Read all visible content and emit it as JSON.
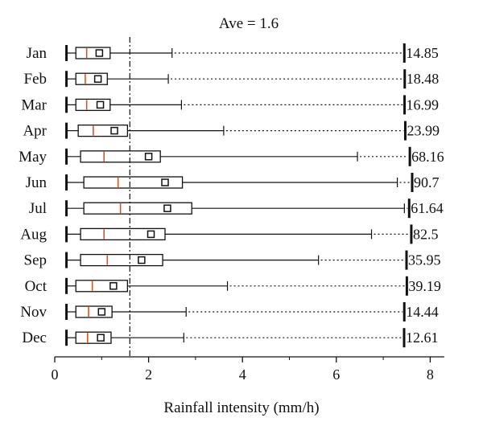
{
  "chart_data": {
    "type": "box",
    "title": "Ave = 1.6",
    "xlabel": "Rainfall intensity (mm/h)",
    "ylabel": "",
    "xlim": [
      0,
      8.3
    ],
    "xticks": [
      0,
      2,
      4,
      6,
      8
    ],
    "average_line": 1.6,
    "categories": [
      "Jan",
      "Feb",
      "Mar",
      "Apr",
      "May",
      "Jun",
      "Jul",
      "Aug",
      "Sep",
      "Oct",
      "Nov",
      "Dec"
    ],
    "boxes": [
      {
        "month": "Jan",
        "min": 0.25,
        "q1": 0.45,
        "median": 0.68,
        "mean": 0.95,
        "q3": 1.18,
        "whisker": 2.5,
        "max": 14.85,
        "max_label": "14.85"
      },
      {
        "month": "Feb",
        "min": 0.25,
        "q1": 0.45,
        "median": 0.65,
        "mean": 0.92,
        "q3": 1.12,
        "whisker": 2.42,
        "max": 18.48,
        "max_label": "18.48"
      },
      {
        "month": "Mar",
        "min": 0.25,
        "q1": 0.45,
        "median": 0.68,
        "mean": 0.97,
        "q3": 1.18,
        "whisker": 2.7,
        "max": 16.99,
        "max_label": "16.99"
      },
      {
        "month": "Apr",
        "min": 0.25,
        "q1": 0.5,
        "median": 0.82,
        "mean": 1.27,
        "q3": 1.55,
        "whisker": 3.6,
        "max": 23.99,
        "max_label": "23.99"
      },
      {
        "month": "May",
        "min": 0.25,
        "q1": 0.55,
        "median": 1.05,
        "mean": 2.0,
        "q3": 2.25,
        "whisker": 6.45,
        "max": 68.16,
        "max_label": "68.16"
      },
      {
        "month": "Jun",
        "min": 0.25,
        "q1": 0.62,
        "median": 1.35,
        "mean": 2.35,
        "q3": 2.72,
        "whisker": 7.3,
        "max": 90.7,
        "max_label": "90.7"
      },
      {
        "month": "Jul",
        "min": 0.25,
        "q1": 0.62,
        "median": 1.4,
        "mean": 2.4,
        "q3": 2.92,
        "whisker": 7.45,
        "max": 61.64,
        "max_label": "61.64"
      },
      {
        "month": "Aug",
        "min": 0.25,
        "q1": 0.55,
        "median": 1.05,
        "mean": 2.05,
        "q3": 2.35,
        "whisker": 6.75,
        "max": 82.5,
        "max_label": "82.5"
      },
      {
        "month": "Sep",
        "min": 0.25,
        "q1": 0.55,
        "median": 1.12,
        "mean": 1.85,
        "q3": 2.3,
        "whisker": 5.62,
        "max": 35.95,
        "max_label": "35.95"
      },
      {
        "month": "Oct",
        "min": 0.25,
        "q1": 0.45,
        "median": 0.8,
        "mean": 1.25,
        "q3": 1.55,
        "whisker": 3.68,
        "max": 39.19,
        "max_label": "39.19"
      },
      {
        "month": "Nov",
        "min": 0.25,
        "q1": 0.45,
        "median": 0.72,
        "mean": 1.0,
        "q3": 1.22,
        "whisker": 2.8,
        "max": 14.44,
        "max_label": "14.44"
      },
      {
        "month": "Dec",
        "min": 0.25,
        "q1": 0.45,
        "median": 0.7,
        "mean": 0.98,
        "q3": 1.2,
        "whisker": 2.75,
        "max": 12.61,
        "max_label": "12.61"
      }
    ],
    "colors": {
      "median": "#d9531e",
      "lines": "#111111"
    }
  }
}
